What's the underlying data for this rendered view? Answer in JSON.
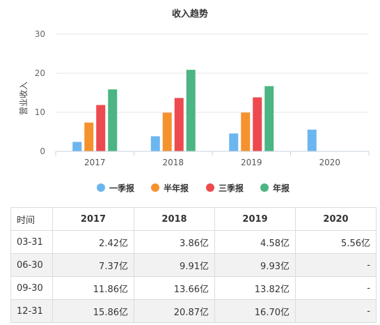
{
  "chart_data": {
    "type": "bar",
    "title": "收入趋势",
    "ylabel": "营业收入",
    "ylim": [
      0,
      30
    ],
    "yticks": [
      0,
      10,
      20,
      30
    ],
    "categories": [
      "2017",
      "2018",
      "2019",
      "2020"
    ],
    "series": [
      {
        "name": "一季报",
        "color": "#6cb6f0",
        "values": [
          2.42,
          3.86,
          4.58,
          5.56
        ]
      },
      {
        "name": "半年报",
        "color": "#f5922d",
        "values": [
          7.37,
          9.91,
          9.93,
          null
        ]
      },
      {
        "name": "三季报",
        "color": "#ec4a4f",
        "values": [
          11.86,
          13.66,
          13.82,
          null
        ]
      },
      {
        "name": "年报",
        "color": "#4bb583",
        "values": [
          15.86,
          20.87,
          16.7,
          null
        ]
      }
    ],
    "legend_position": "bottom",
    "grid": true
  },
  "table": {
    "header": [
      "时间",
      "2017",
      "2018",
      "2019",
      "2020"
    ],
    "rows": [
      [
        "03-31",
        "2.42亿",
        "3.86亿",
        "4.58亿",
        "5.56亿"
      ],
      [
        "06-30",
        "7.37亿",
        "9.91亿",
        "9.93亿",
        "-"
      ],
      [
        "09-30",
        "11.86亿",
        "13.66亿",
        "13.82亿",
        "-"
      ],
      [
        "12-31",
        "15.86亿",
        "20.87亿",
        "16.70亿",
        "-"
      ]
    ]
  }
}
